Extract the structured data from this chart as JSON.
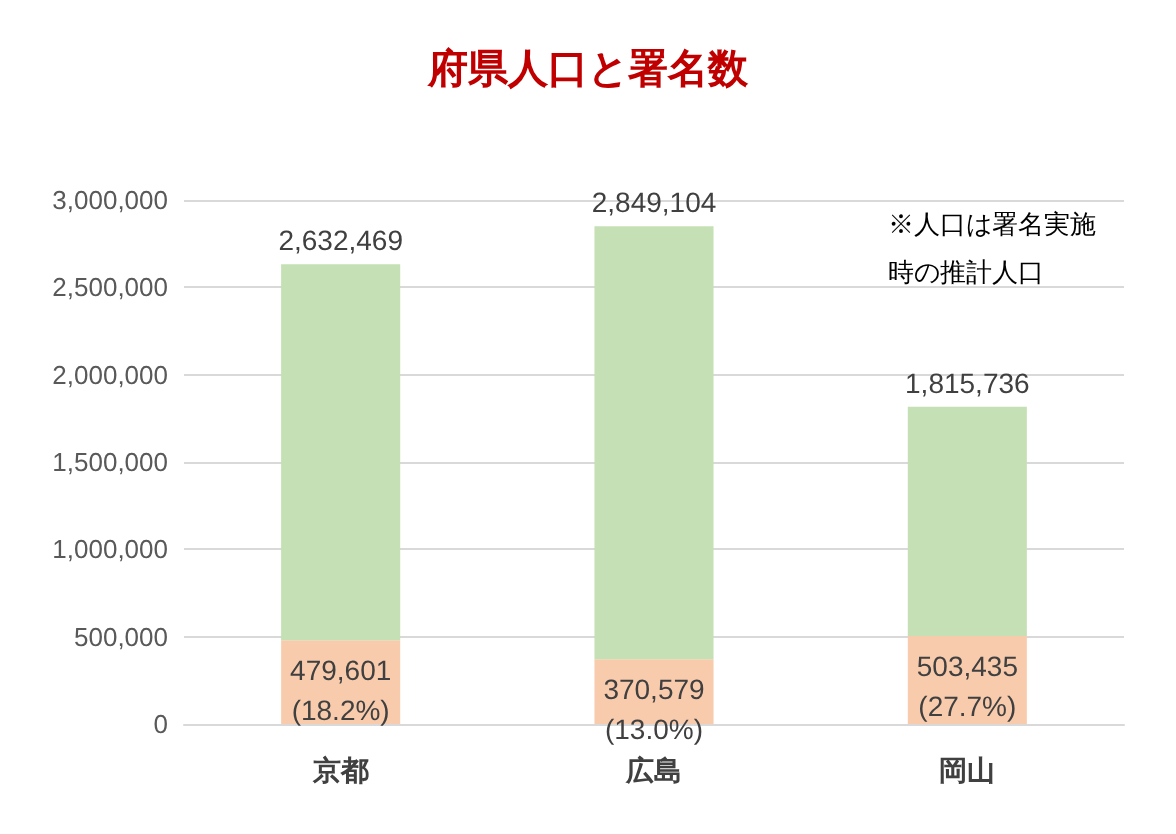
{
  "chart_data": {
    "type": "bar",
    "title": "府県人口と署名数",
    "categories": [
      "京都",
      "広島",
      "岡山"
    ],
    "stacked": true,
    "series": [
      {
        "color": "#f8cbad",
        "values": [
          479601,
          370579,
          503435
        ],
        "value_labels": [
          "479,601\n(18.2%)",
          "370,579\n(13.0%)",
          "503,435\n(27.7%)"
        ]
      },
      {
        "color": "#c5e0b4",
        "values": [
          2152868,
          2478525,
          1312301
        ]
      }
    ],
    "totals": [
      "2,632,469",
      "2,849,104",
      "1,815,736"
    ],
    "ylim": [
      0,
      3000000
    ],
    "yticks": [
      0,
      {
        "value": 500000,
        "label": "500,000"
      },
      {
        "value": 1000000,
        "label": "1,000,000"
      },
      {
        "value": 1500000,
        "label": "1,500,000"
      },
      {
        "value": 2000000,
        "label": "2,000,000"
      },
      {
        "value": 2500000,
        "label": "2,500,000"
      },
      {
        "value": 3000000,
        "label": "3,000,000"
      }
    ],
    "grid": "y",
    "annotations": [
      "※人口は署名実施時の推計人口"
    ]
  }
}
